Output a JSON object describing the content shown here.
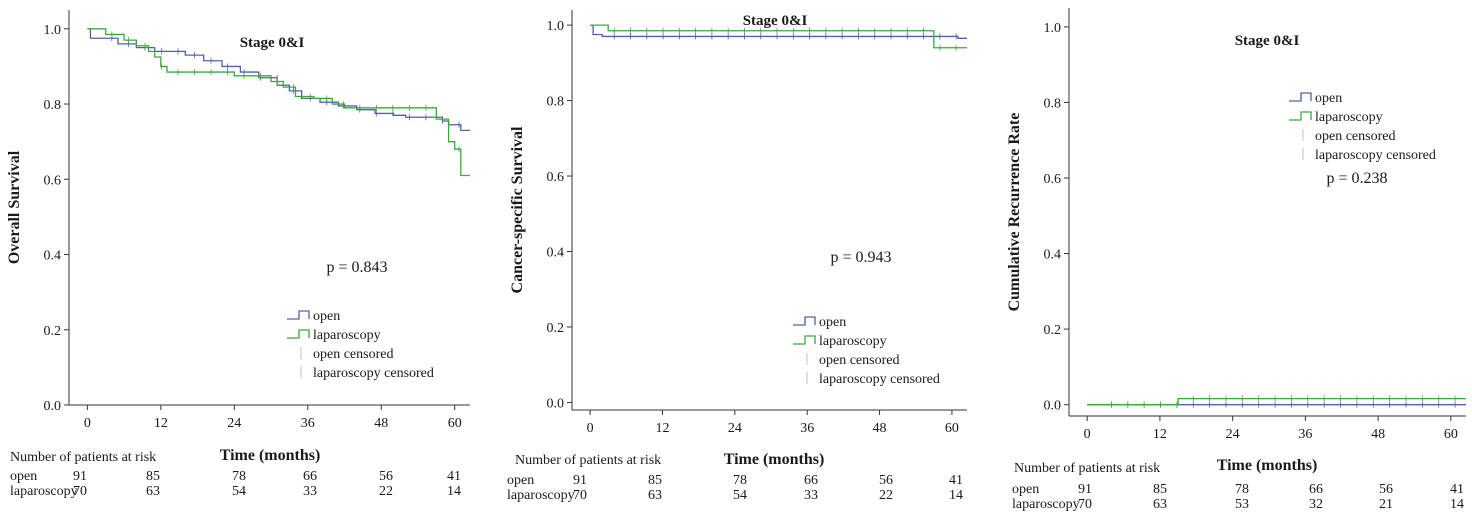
{
  "colors": {
    "open": "#5560a8",
    "laparoscopy": "#3ca83c",
    "axis": "#333333",
    "text": "#1a1a1a"
  },
  "chart_data": [
    {
      "type": "line",
      "title": "Stage 0&I",
      "ylabel": "Overall Survival",
      "xlabel": "Time (months)",
      "xlim": [
        -3,
        62.5
      ],
      "ylim": [
        0,
        1.05
      ],
      "xticks": [
        0,
        12,
        24,
        36,
        48,
        60
      ],
      "yticks": [
        "0.0",
        "0.2",
        "0.4",
        "0.6",
        "0.8",
        "1.0"
      ],
      "pvalue": "p = 0.843",
      "legend": [
        "open",
        "laparoscopy",
        "open censored",
        "laparoscopy censored"
      ],
      "risk_title": "Number of patients at risk",
      "risk": [
        {
          "label": "open",
          "values": [
            "91",
            "85",
            "78",
            "66",
            "56",
            "41"
          ]
        },
        {
          "label": "laparoscopy",
          "values": [
            "70",
            "63",
            "54",
            "33",
            "22",
            "14"
          ]
        }
      ],
      "series": [
        {
          "name": "open",
          "steps": [
            [
              0,
              1.0
            ],
            [
              0.5,
              0.975
            ],
            [
              5,
              0.96
            ],
            [
              8,
              0.95
            ],
            [
              11,
              0.94
            ],
            [
              16,
              0.93
            ],
            [
              19,
              0.915
            ],
            [
              22,
              0.9
            ],
            [
              25,
              0.885
            ],
            [
              28,
              0.87
            ],
            [
              31,
              0.85
            ],
            [
              33,
              0.835
            ],
            [
              35,
              0.815
            ],
            [
              38,
              0.805
            ],
            [
              41,
              0.795
            ],
            [
              44,
              0.785
            ],
            [
              47,
              0.775
            ],
            [
              50,
              0.77
            ],
            [
              52,
              0.765
            ],
            [
              58,
              0.755
            ],
            [
              59,
              0.745
            ],
            [
              61,
              0.73
            ],
            [
              62.5,
              0.73
            ]
          ]
        },
        {
          "name": "laparoscopy",
          "steps": [
            [
              0,
              1.0
            ],
            [
              3,
              0.985
            ],
            [
              6,
              0.97
            ],
            [
              8,
              0.955
            ],
            [
              10,
              0.94
            ],
            [
              11,
              0.925
            ],
            [
              12,
              0.9
            ],
            [
              13,
              0.885
            ],
            [
              24,
              0.875
            ],
            [
              30,
              0.86
            ],
            [
              32,
              0.845
            ],
            [
              34,
              0.82
            ],
            [
              37,
              0.815
            ],
            [
              40,
              0.8
            ],
            [
              42,
              0.79
            ],
            [
              57,
              0.76
            ],
            [
              59,
              0.7
            ],
            [
              60,
              0.68
            ],
            [
              61,
              0.61
            ],
            [
              62.5,
              0.61
            ]
          ]
        }
      ]
    },
    {
      "type": "line",
      "title": "Stage 0&I",
      "ylabel": "Cancer-specific Survival",
      "xlabel": "Time (months)",
      "xlim": [
        -3,
        62.5
      ],
      "ylim": [
        -0.02,
        1.04
      ],
      "xticks": [
        0,
        12,
        24,
        36,
        48,
        60
      ],
      "yticks": [
        "0.0",
        "0.2",
        "0.4",
        "0.6",
        "0.8",
        "1.0"
      ],
      "pvalue": "p = 0.943",
      "legend": [
        "open",
        "laparoscopy",
        "open censored",
        "laparoscopy censored"
      ],
      "risk_title": "Number of patients at risk",
      "risk": [
        {
          "label": "open",
          "values": [
            "91",
            "85",
            "78",
            "66",
            "56",
            "41"
          ]
        },
        {
          "label": "laparoscopy",
          "values": [
            "70",
            "63",
            "54",
            "33",
            "22",
            "14"
          ]
        }
      ],
      "series": [
        {
          "name": "open",
          "steps": [
            [
              0,
              1.0
            ],
            [
              0.5,
              0.975
            ],
            [
              2,
              0.97
            ],
            [
              61,
              0.965
            ],
            [
              62.5,
              0.965
            ]
          ]
        },
        {
          "name": "laparoscopy",
          "steps": [
            [
              0,
              1.0
            ],
            [
              3,
              0.985
            ],
            [
              57,
              0.94
            ],
            [
              62.5,
              0.94
            ]
          ]
        }
      ]
    },
    {
      "type": "line",
      "title": "Stage 0&I",
      "ylabel": "Cumulative Recurrence Rate",
      "xlabel": "Time (months)",
      "xlim": [
        -3,
        62.5
      ],
      "ylim": [
        -0.03,
        1.05
      ],
      "xticks": [
        0,
        12,
        24,
        36,
        48,
        60
      ],
      "yticks": [
        "0.0",
        "0.2",
        "0.4",
        "0.6",
        "0.8",
        "1.0"
      ],
      "pvalue": "p = 0.238",
      "legend": [
        "open",
        "laparoscopy",
        "open censored",
        "laparoscopy censored"
      ],
      "risk_title": "Number of patients at risk",
      "risk": [
        {
          "label": "open",
          "values": [
            "91",
            "85",
            "78",
            "66",
            "56",
            "41"
          ]
        },
        {
          "label": "laparoscopy",
          "values": [
            "70",
            "63",
            "53",
            "32",
            "21",
            "14"
          ]
        }
      ],
      "series": [
        {
          "name": "open",
          "steps": [
            [
              0,
              0.0
            ],
            [
              62.5,
              0.0
            ]
          ]
        },
        {
          "name": "laparoscopy",
          "steps": [
            [
              0,
              0.0
            ],
            [
              15,
              0.016
            ],
            [
              62.5,
              0.016
            ]
          ]
        }
      ]
    }
  ]
}
